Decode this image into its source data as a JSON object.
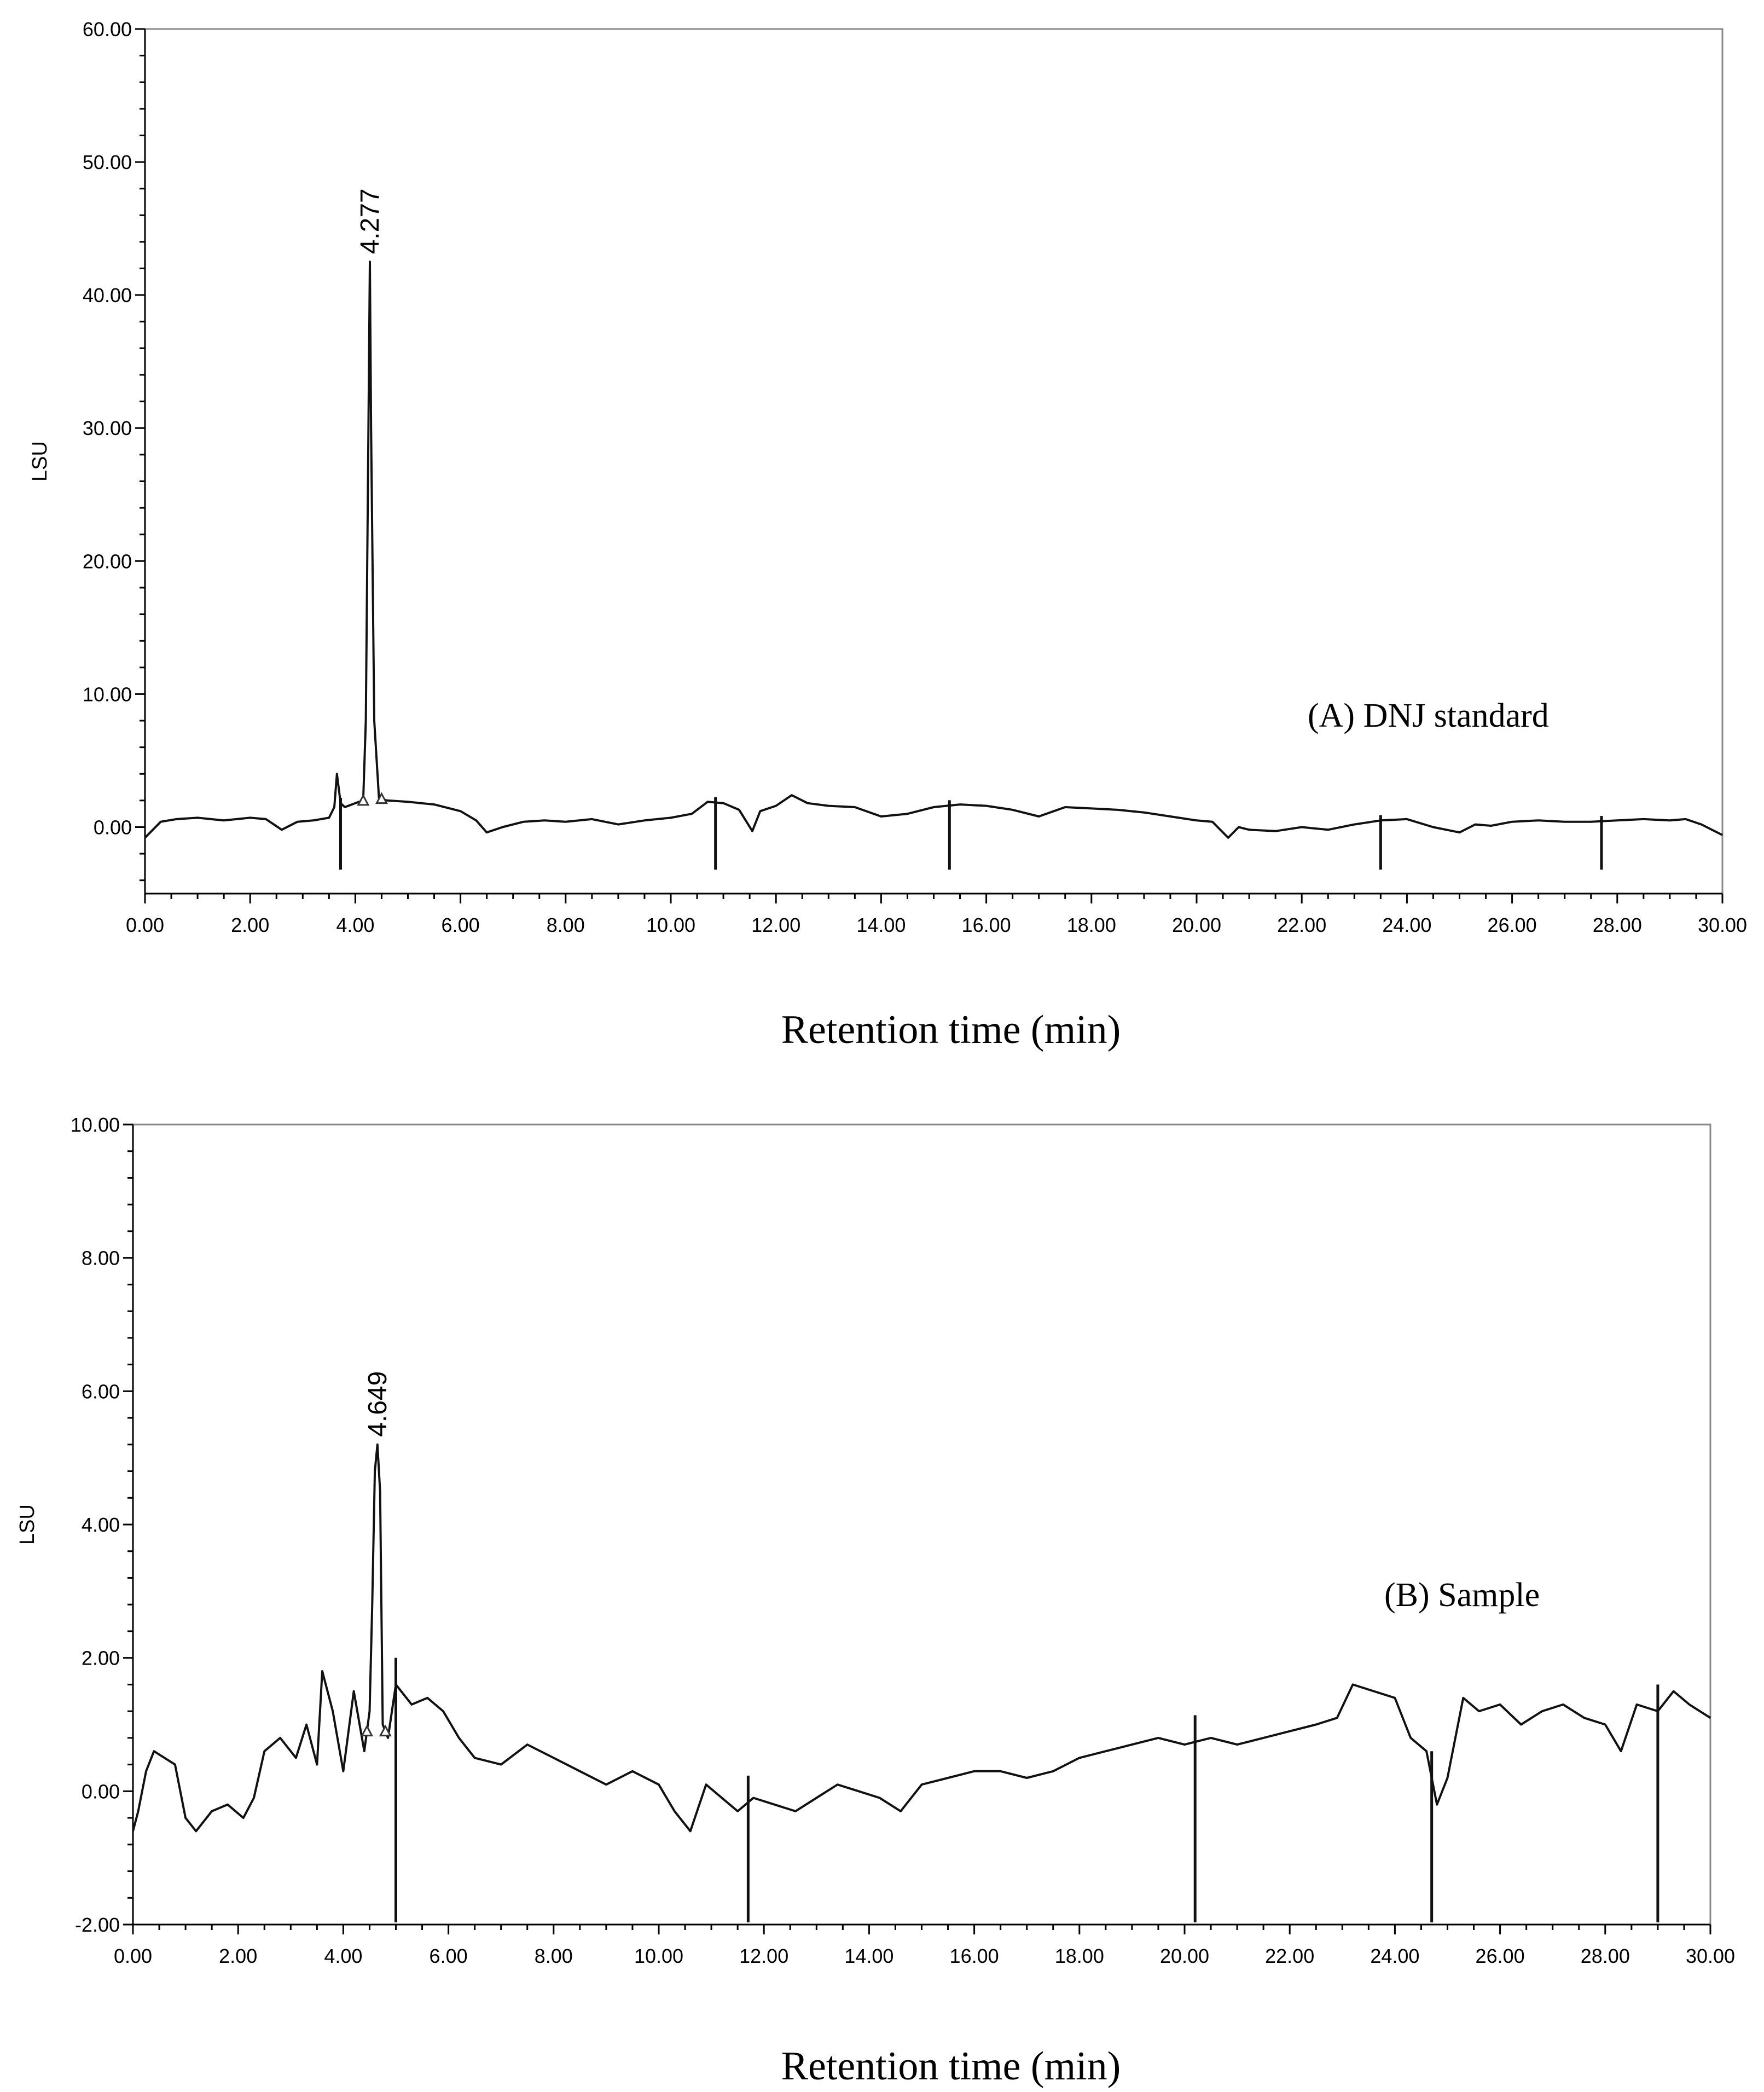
{
  "chart_data": [
    {
      "type": "line",
      "panel_caption": "(A) DNJ standard",
      "xlabel": "Retention time (min)",
      "ylabel": "LSU",
      "xlim": [
        0,
        30
      ],
      "ylim": [
        -5,
        60
      ],
      "x_ticks": [
        0,
        2,
        4,
        6,
        8,
        10,
        12,
        14,
        16,
        18,
        20,
        22,
        24,
        26,
        28,
        30
      ],
      "x_tick_labels": [
        "0.00",
        "2.00",
        "4.00",
        "6.00",
        "8.00",
        "10.00",
        "12.00",
        "14.00",
        "16.00",
        "18.00",
        "20.00",
        "22.00",
        "24.00",
        "26.00",
        "28.00",
        "30.00"
      ],
      "y_ticks": [
        0,
        10,
        20,
        30,
        40,
        50,
        60
      ],
      "y_tick_labels": [
        "0.00",
        "10.00",
        "20.00",
        "30.00",
        "40.00",
        "50.00",
        "60.00"
      ],
      "peak": {
        "label": "4.277",
        "x": 4.277,
        "y": 42.5
      },
      "baseline_markers_x": [
        4.15,
        4.5
      ],
      "event_markers_x": [
        3.72,
        10.85,
        15.3,
        23.5,
        27.7
      ],
      "series": [
        {
          "x": [
            0,
            0.3,
            0.6,
            1.0,
            1.5,
            2.0,
            2.3,
            2.6,
            2.9,
            3.2,
            3.5,
            3.6,
            3.65,
            3.72,
            3.8,
            4.0,
            4.15,
            4.2,
            4.25,
            4.277,
            4.3,
            4.36,
            4.45,
            4.6,
            5.0,
            5.5,
            6.0,
            6.3,
            6.5,
            6.8,
            7.2,
            7.6,
            8.0,
            8.5,
            9.0,
            9.5,
            10.0,
            10.4,
            10.7,
            11.0,
            11.3,
            11.55,
            11.7,
            12.0,
            12.3,
            12.6,
            13.0,
            13.5,
            14.0,
            14.5,
            15.0,
            15.5,
            16.0,
            16.5,
            17.0,
            17.5,
            18.0,
            18.5,
            19.0,
            19.5,
            20.0,
            20.3,
            20.6,
            20.8,
            21.0,
            21.5,
            22.0,
            22.5,
            23.0,
            23.5,
            24.0,
            24.5,
            25.0,
            25.3,
            25.6,
            26.0,
            26.5,
            27.0,
            27.5,
            28.0,
            28.5,
            29.0,
            29.3,
            29.6,
            30.0
          ],
          "y": [
            -0.8,
            0.4,
            0.6,
            0.7,
            0.5,
            0.7,
            0.6,
            -0.2,
            0.4,
            0.5,
            0.7,
            1.5,
            4.0,
            1.8,
            1.5,
            1.8,
            2.0,
            8.0,
            30.0,
            42.5,
            30.0,
            8.0,
            2.2,
            2.0,
            1.9,
            1.7,
            1.2,
            0.5,
            -0.4,
            0.0,
            0.4,
            0.5,
            0.4,
            0.6,
            0.2,
            0.5,
            0.7,
            1.0,
            1.9,
            1.8,
            1.3,
            -0.3,
            1.2,
            1.6,
            2.4,
            1.8,
            1.6,
            1.5,
            0.8,
            1.0,
            1.5,
            1.7,
            1.6,
            1.3,
            0.8,
            1.5,
            1.4,
            1.3,
            1.1,
            0.8,
            0.5,
            0.4,
            -0.8,
            0.0,
            -0.2,
            -0.3,
            0.0,
            -0.2,
            0.2,
            0.5,
            0.6,
            0.0,
            -0.4,
            0.2,
            0.1,
            0.4,
            0.5,
            0.4,
            0.4,
            0.5,
            0.6,
            0.5,
            0.6,
            0.2,
            -0.6
          ]
        }
      ]
    },
    {
      "type": "line",
      "panel_caption": "(B) Sample",
      "xlabel": "Retention time (min)",
      "ylabel": "LSU",
      "xlim": [
        0,
        30
      ],
      "ylim": [
        -2,
        10
      ],
      "x_ticks": [
        0,
        2,
        4,
        6,
        8,
        10,
        12,
        14,
        16,
        18,
        20,
        22,
        24,
        26,
        28,
        30
      ],
      "x_tick_labels": [
        "0.00",
        "2.00",
        "4.00",
        "6.00",
        "8.00",
        "10.00",
        "12.00",
        "14.00",
        "16.00",
        "18.00",
        "20.00",
        "22.00",
        "24.00",
        "26.00",
        "28.00",
        "30.00"
      ],
      "y_ticks": [
        -2,
        0,
        2,
        4,
        6,
        8,
        10
      ],
      "y_tick_labels": [
        "-2.00",
        "0.00",
        "2.00",
        "4.00",
        "6.00",
        "8.00",
        "10.00"
      ],
      "peak": {
        "label": "4.649",
        "x": 4.649,
        "y": 5.2
      },
      "baseline_markers_x": [
        4.45,
        4.8
      ],
      "event_markers_x": [
        5.0,
        11.7,
        20.2,
        24.7,
        29.0
      ],
      "series": [
        {
          "x": [
            0,
            0.1,
            0.25,
            0.4,
            0.6,
            0.8,
            1.0,
            1.2,
            1.5,
            1.8,
            2.1,
            2.3,
            2.5,
            2.8,
            3.1,
            3.3,
            3.5,
            3.6,
            3.8,
            4.0,
            4.2,
            4.4,
            4.5,
            4.55,
            4.6,
            4.649,
            4.7,
            4.75,
            4.85,
            5.0,
            5.3,
            5.6,
            5.9,
            6.2,
            6.5,
            7.0,
            7.5,
            8.0,
            8.5,
            9.0,
            9.5,
            10.0,
            10.3,
            10.6,
            10.9,
            11.2,
            11.5,
            11.8,
            12.2,
            12.6,
            13.0,
            13.4,
            13.8,
            14.2,
            14.6,
            15.0,
            15.5,
            16.0,
            16.5,
            17.0,
            17.5,
            18.0,
            18.5,
            19.0,
            19.5,
            20.0,
            20.5,
            21.0,
            21.5,
            22.0,
            22.5,
            22.9,
            23.2,
            23.6,
            24.0,
            24.3,
            24.6,
            24.8,
            25.0,
            25.3,
            25.6,
            26.0,
            26.4,
            26.8,
            27.2,
            27.6,
            28.0,
            28.3,
            28.6,
            29.0,
            29.3,
            29.6,
            30.0
          ],
          "y": [
            -0.6,
            -0.3,
            0.3,
            0.6,
            0.5,
            0.4,
            -0.4,
            -0.6,
            -0.3,
            -0.2,
            -0.4,
            -0.1,
            0.6,
            0.8,
            0.5,
            1.0,
            0.4,
            1.8,
            1.2,
            0.3,
            1.5,
            0.6,
            1.2,
            2.8,
            4.8,
            5.2,
            4.5,
            1.0,
            0.8,
            1.6,
            1.3,
            1.4,
            1.2,
            0.8,
            0.5,
            0.4,
            0.7,
            0.5,
            0.3,
            0.1,
            0.3,
            0.1,
            -0.3,
            -0.6,
            0.1,
            -0.1,
            -0.3,
            -0.1,
            -0.2,
            -0.3,
            -0.1,
            0.1,
            0.0,
            -0.1,
            -0.3,
            0.1,
            0.2,
            0.3,
            0.3,
            0.2,
            0.3,
            0.5,
            0.6,
            0.7,
            0.8,
            0.7,
            0.8,
            0.7,
            0.8,
            0.9,
            1.0,
            1.1,
            1.6,
            1.5,
            1.4,
            0.8,
            0.6,
            -0.2,
            0.2,
            1.4,
            1.2,
            1.3,
            1.0,
            1.2,
            1.3,
            1.1,
            1.0,
            0.6,
            1.3,
            1.2,
            1.5,
            1.3,
            1.1
          ]
        }
      ]
    }
  ]
}
